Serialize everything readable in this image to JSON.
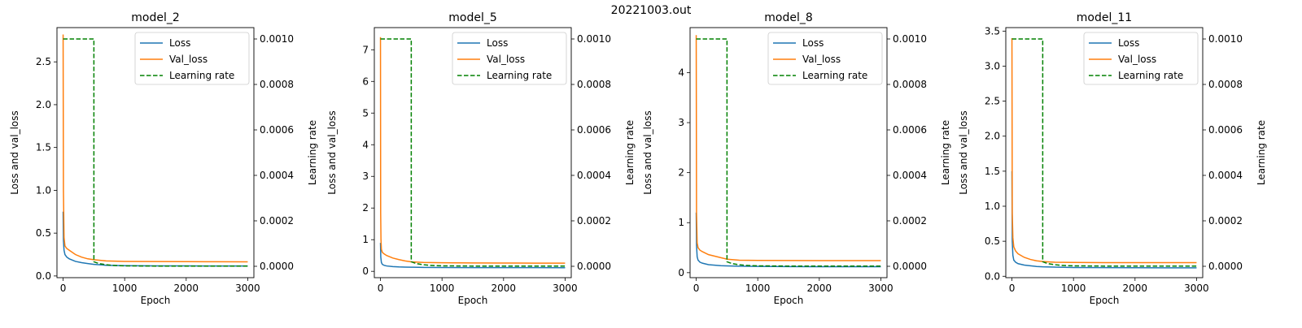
{
  "figure": {
    "title": "20221003.out"
  },
  "chart_data": [
    {
      "type": "line",
      "title": "model_2",
      "xlabel": "Epoch",
      "ylabel": "Loss and val_loss",
      "y2label": "Learning rate",
      "xlim": [
        -100,
        3100
      ],
      "ylim": [
        -0.02,
        2.9
      ],
      "y2lim": [
        -5e-05,
        0.00105
      ],
      "xticks": [
        "0",
        "1000",
        "2000",
        "3000"
      ],
      "yticks": [
        "0.0",
        "0.5",
        "1.0",
        "1.5",
        "2.0",
        "2.5"
      ],
      "y2ticks": [
        "0.0000",
        "0.0002",
        "0.0004",
        "0.0006",
        "0.0008",
        "0.0010"
      ],
      "grid": false,
      "legend": "upper right",
      "series": [
        {
          "name": "Loss",
          "color": "#1f77b4",
          "style": "solid",
          "x": [
            0,
            5,
            15,
            30,
            60,
            100,
            200,
            300,
            400,
            500,
            700,
            1000,
            1500,
            2000,
            2500,
            3000
          ],
          "y": [
            0.75,
            0.42,
            0.3,
            0.25,
            0.22,
            0.2,
            0.17,
            0.155,
            0.145,
            0.135,
            0.125,
            0.12,
            0.118,
            0.117,
            0.116,
            0.116
          ]
        },
        {
          "name": "Val_loss",
          "color": "#ff7f0e",
          "style": "solid",
          "x": [
            0,
            5,
            15,
            30,
            60,
            100,
            200,
            300,
            400,
            500,
            700,
            1000,
            1500,
            2000,
            2500,
            3000
          ],
          "y": [
            2.82,
            1.0,
            0.45,
            0.35,
            0.32,
            0.3,
            0.25,
            0.22,
            0.2,
            0.19,
            0.175,
            0.17,
            0.168,
            0.167,
            0.166,
            0.165
          ]
        },
        {
          "name": "Learning rate",
          "color": "#008000",
          "style": "dashed",
          "axis": "right",
          "x": [
            0,
            500,
            500,
            550,
            600,
            700,
            800,
            1000,
            1500,
            3000
          ],
          "y": [
            0.001,
            0.001,
            2e-05,
            1.5e-05,
            1.1e-05,
            7e-06,
            4e-06,
            2e-06,
            1e-06,
            1e-06
          ]
        }
      ]
    },
    {
      "type": "line",
      "title": "model_5",
      "xlabel": "Epoch",
      "ylabel": "Loss and val_loss",
      "y2label": "Learning rate",
      "xlim": [
        -100,
        3100
      ],
      "ylim": [
        -0.2,
        7.7
      ],
      "y2lim": [
        -5e-05,
        0.00105
      ],
      "xticks": [
        "0",
        "1000",
        "2000",
        "3000"
      ],
      "yticks": [
        "0",
        "1",
        "2",
        "3",
        "4",
        "5",
        "6",
        "7"
      ],
      "y2ticks": [
        "0.0000",
        "0.0002",
        "0.0004",
        "0.0006",
        "0.0008",
        "0.0010"
      ],
      "grid": false,
      "legend": "upper right",
      "series": [
        {
          "name": "Loss",
          "color": "#1f77b4",
          "style": "solid",
          "x": [
            0,
            5,
            15,
            30,
            60,
            100,
            200,
            300,
            400,
            500,
            700,
            1000,
            1500,
            2000,
            2500,
            3000
          ],
          "y": [
            0.9,
            0.45,
            0.28,
            0.22,
            0.19,
            0.17,
            0.15,
            0.14,
            0.135,
            0.13,
            0.125,
            0.12,
            0.118,
            0.117,
            0.116,
            0.115
          ]
        },
        {
          "name": "Val_loss",
          "color": "#ff7f0e",
          "style": "solid",
          "x": [
            0,
            3,
            8,
            15,
            30,
            60,
            100,
            200,
            300,
            400,
            500,
            700,
            1000,
            1500,
            2000,
            2500,
            3000
          ],
          "y": [
            7.4,
            1.85,
            1.0,
            0.7,
            0.6,
            0.55,
            0.5,
            0.42,
            0.37,
            0.33,
            0.3,
            0.28,
            0.27,
            0.265,
            0.262,
            0.26,
            0.26
          ]
        },
        {
          "name": "Learning rate",
          "color": "#008000",
          "style": "dashed",
          "axis": "right",
          "x": [
            0,
            500,
            500,
            550,
            600,
            700,
            800,
            1000,
            1500,
            3000
          ],
          "y": [
            0.001,
            0.001,
            2e-05,
            1.5e-05,
            1.1e-05,
            7e-06,
            4e-06,
            2e-06,
            1e-06,
            1e-06
          ]
        }
      ]
    },
    {
      "type": "line",
      "title": "model_8",
      "xlabel": "Epoch",
      "ylabel": "Loss and val_loss",
      "y2label": "Learning rate",
      "xlim": [
        -100,
        3100
      ],
      "ylim": [
        -0.1,
        4.9
      ],
      "y2lim": [
        -5e-05,
        0.00105
      ],
      "xticks": [
        "0",
        "1000",
        "2000",
        "3000"
      ],
      "yticks": [
        "0",
        "1",
        "2",
        "3",
        "4"
      ],
      "y2ticks": [
        "0.0000",
        "0.0002",
        "0.0004",
        "0.0006",
        "0.0008",
        "0.0010"
      ],
      "grid": false,
      "legend": "upper right",
      "series": [
        {
          "name": "Loss",
          "color": "#1f77b4",
          "style": "solid",
          "x": [
            0,
            5,
            15,
            30,
            60,
            100,
            200,
            300,
            400,
            500,
            700,
            1000,
            1500,
            2000,
            2500,
            3000
          ],
          "y": [
            1.2,
            0.55,
            0.32,
            0.25,
            0.21,
            0.19,
            0.16,
            0.15,
            0.14,
            0.135,
            0.13,
            0.125,
            0.122,
            0.12,
            0.12,
            0.12
          ]
        },
        {
          "name": "Val_loss",
          "color": "#ff7f0e",
          "style": "solid",
          "x": [
            0,
            5,
            15,
            30,
            60,
            100,
            200,
            300,
            400,
            500,
            700,
            1000,
            1500,
            2000,
            2500,
            3000
          ],
          "y": [
            4.75,
            1.2,
            0.6,
            0.5,
            0.45,
            0.42,
            0.36,
            0.33,
            0.3,
            0.27,
            0.25,
            0.245,
            0.242,
            0.24,
            0.24,
            0.24
          ]
        },
        {
          "name": "Learning rate",
          "color": "#008000",
          "style": "dashed",
          "axis": "right",
          "x": [
            0,
            500,
            500,
            550,
            600,
            700,
            800,
            1000,
            1500,
            3000
          ],
          "y": [
            0.001,
            0.001,
            2e-05,
            1.5e-05,
            1.1e-05,
            7e-06,
            4e-06,
            2e-06,
            1e-06,
            1e-06
          ]
        }
      ]
    },
    {
      "type": "line",
      "title": "model_11",
      "xlabel": "Epoch",
      "ylabel": "Loss and val_loss",
      "y2label": "Learning rate",
      "xlim": [
        -100,
        3100
      ],
      "ylim": [
        -0.02,
        3.55
      ],
      "y2lim": [
        -5e-05,
        0.00105
      ],
      "xticks": [
        "0",
        "1000",
        "2000",
        "3000"
      ],
      "yticks": [
        "0.0",
        "0.5",
        "1.0",
        "1.5",
        "2.0",
        "2.5",
        "3.0",
        "3.5"
      ],
      "y2ticks": [
        "0.0000",
        "0.0002",
        "0.0004",
        "0.0006",
        "0.0008",
        "0.0010"
      ],
      "grid": false,
      "legend": "upper right",
      "series": [
        {
          "name": "Loss",
          "color": "#1f77b4",
          "style": "solid",
          "x": [
            0,
            5,
            15,
            30,
            60,
            100,
            200,
            300,
            400,
            500,
            700,
            1000,
            1500,
            2000,
            2500,
            3000
          ],
          "y": [
            1.5,
            0.5,
            0.3,
            0.23,
            0.2,
            0.18,
            0.16,
            0.15,
            0.14,
            0.135,
            0.13,
            0.125,
            0.123,
            0.122,
            0.121,
            0.12
          ]
        },
        {
          "name": "Val_loss",
          "color": "#ff7f0e",
          "style": "solid",
          "x": [
            0,
            5,
            15,
            30,
            60,
            100,
            200,
            300,
            400,
            500,
            700,
            1000,
            1500,
            2000,
            2500,
            3000
          ],
          "y": [
            3.4,
            0.9,
            0.55,
            0.42,
            0.36,
            0.32,
            0.27,
            0.24,
            0.22,
            0.21,
            0.2,
            0.197,
            0.195,
            0.195,
            0.195,
            0.195
          ]
        },
        {
          "name": "Learning rate",
          "color": "#008000",
          "style": "dashed",
          "axis": "right",
          "x": [
            0,
            500,
            500,
            550,
            600,
            700,
            800,
            1000,
            1500,
            3000
          ],
          "y": [
            0.001,
            0.001,
            2e-05,
            1.5e-05,
            1.1e-05,
            7e-06,
            4e-06,
            2e-06,
            1e-06,
            1e-06
          ]
        }
      ]
    }
  ]
}
